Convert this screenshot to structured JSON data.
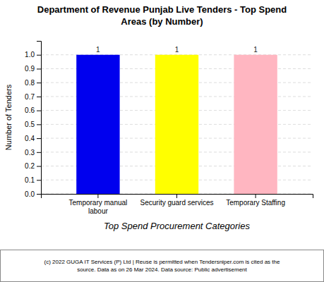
{
  "chart_data": {
    "type": "bar",
    "title": "Department of Revenue Punjab Live Tenders - Top Spend\nAreas (by Number)",
    "xlabel": "Top Spend Procurement Categories",
    "ylabel": "Number of Tenders",
    "categories": [
      "Temporary manual\nlabour",
      "Security guard services",
      "Temporary Staffing"
    ],
    "values": [
      1,
      1,
      1
    ],
    "colors": [
      "#0000EE",
      "#FFFF00",
      "#FFB6C1"
    ],
    "ylim": [
      0,
      1.1
    ],
    "yticks": [
      {
        "value": 0.0,
        "label": "0.0"
      },
      0.1,
      0.2,
      0.3,
      0.4,
      0.5,
      0.6,
      0.7,
      0.8,
      0.9,
      {
        "value": 1.0,
        "label": "1.0"
      }
    ],
    "grid": true,
    "data_labels": true,
    "annotations": [
      "(c) 2022 GUGA IT Services (P) Ltd | Reuse is permitted when Tendersniper.com is cited as the\nsource. Data as on 26 Mar 2024. Data source: Public advertisement"
    ]
  }
}
